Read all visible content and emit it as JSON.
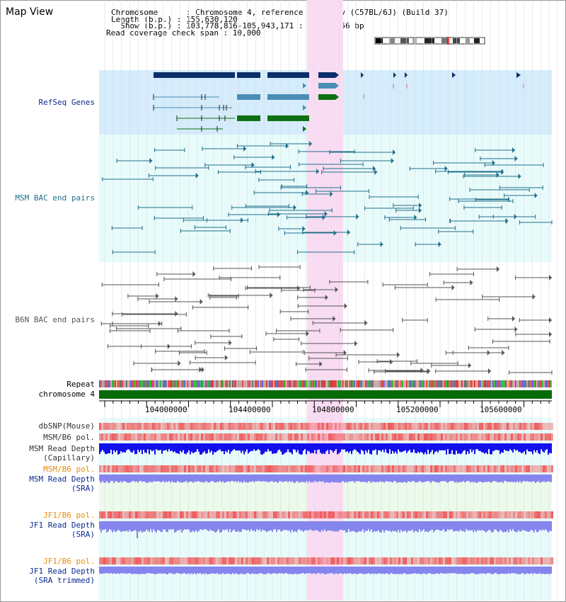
{
  "page": {
    "title": "Map View"
  },
  "header": {
    "chromosome_line": "Chromosome      : Chromosome 4, reference assembly (C57BL/6J) (Build 37)",
    "length_line": "Length (b.p.) : 155,630,120",
    "show_line": "  Show (b.p.) : 103,778,816-105,943,171 : 2,164,356 bp",
    "coverage_line": "Read coverage check span : 10,000"
  },
  "colors": {
    "refseq_bg": "#d4ecfb",
    "track_bg": "#e8fbfb",
    "highlight": "#f9dcf3",
    "refseq_dark": "#0b2f6a",
    "refseq_light": "#4a8eb6",
    "refseq_green": "#0e7012",
    "msm_pair": "#1f6f8b",
    "b6n_pair": "#555555",
    "chromosome_bar": "#076b07",
    "label_blue": "#0b2a8f",
    "label_orange": "#e98a08",
    "depth_capillary": "#1410ec",
    "depth_sra": "#8585ee",
    "snp_red": "#ee5a5a"
  },
  "tracks": {
    "refseq": "RefSeq Genes",
    "msm_bac": "MSM BAC end pairs",
    "b6n_bac": "B6N BAC end pairs",
    "repeat": "Repeat",
    "chromosome": "chromosome 4",
    "dbsnp": "dbSNP(Mouse)",
    "msm_b6_pol": "MSM/B6 pol.",
    "msm_depth_cap_1": "MSM Read Depth",
    "msm_depth_cap_2": "(Capillary)",
    "msm_b6_pol_sra": "MSM/B6 pol.",
    "msm_depth_sra_1": "MSM Read Depth",
    "msm_depth_sra_2": "(SRA)",
    "jf1_b6_pol": "JF1/B6 pol.",
    "jf1_depth_1": "JF1 Read Depth",
    "jf1_depth_2": "(SRA)",
    "jf1_b6_pol_trim": "JF1/B6 pol.",
    "jf1_trim_1": "JF1 Read Depth",
    "jf1_trim_2": "(SRA trimmed)"
  },
  "axis": {
    "ticks": [
      "104000000",
      "104400000",
      "104800000",
      "105200000",
      "105600000"
    ]
  }
}
